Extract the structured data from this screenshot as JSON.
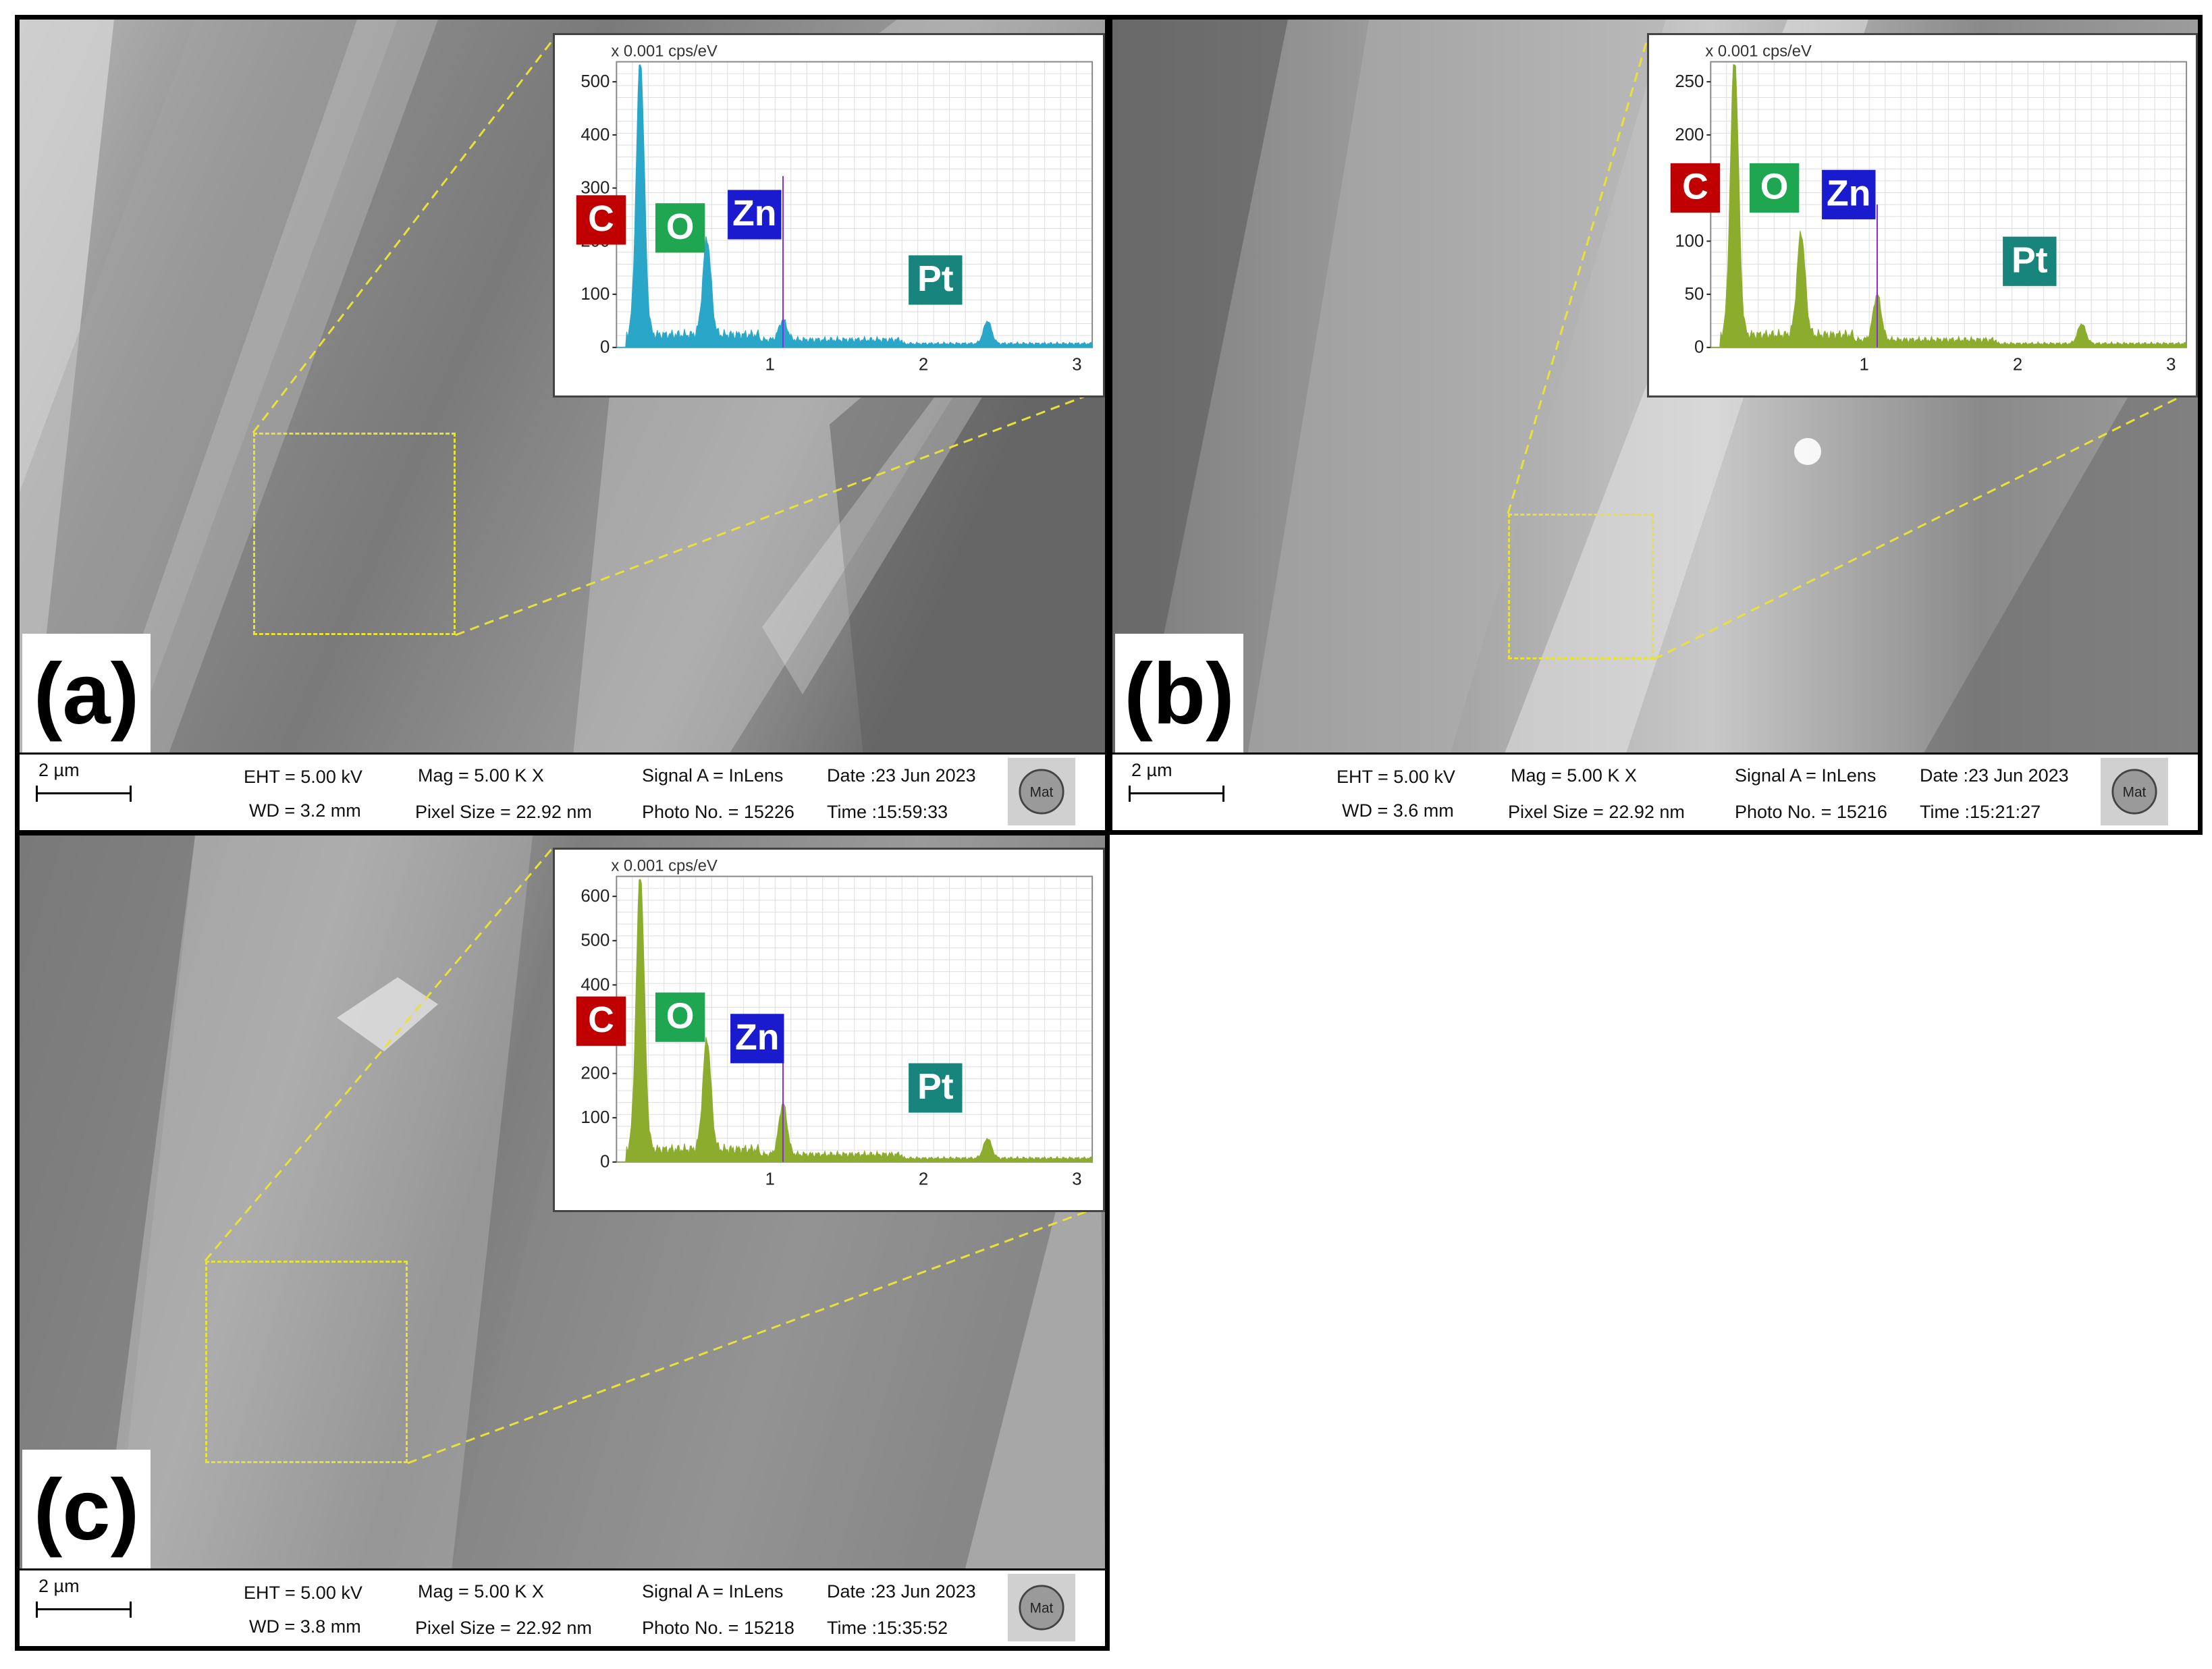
{
  "panels": [
    {
      "label": "(a)",
      "eds": {
        "unit": "x 0.001 cps/eV",
        "y_ticks": [
          "0",
          "100",
          "200",
          "300",
          "400",
          "500"
        ],
        "x_ticks": [
          "1",
          "2",
          "3"
        ],
        "spectrum_color": "#2aa6c9",
        "elements": [
          {
            "symbol": "C",
            "color": "#c00000"
          },
          {
            "symbol": "O",
            "color": "#1fa650"
          },
          {
            "symbol": "Zn",
            "color": "#1a1acf"
          },
          {
            "symbol": "Pt",
            "color": "#17857c"
          }
        ]
      },
      "info": {
        "scale": "2 µm",
        "eht": "EHT =  5.00 kV",
        "wd": "WD =  3.2 mm",
        "mag": "Mag =     5.00 K X",
        "pixel": "Pixel Size = 22.92 nm",
        "signal": "Signal A = InLens",
        "photo": "Photo No. = 15226",
        "date": "Date :23 Jun 2023",
        "time": "Time :15:59:33",
        "logo_text": "Mat"
      }
    },
    {
      "label": "(b)",
      "eds": {
        "unit": "x 0.001 cps/eV",
        "y_ticks": [
          "0",
          "50",
          "100",
          "150",
          "200",
          "250"
        ],
        "x_ticks": [
          "1",
          "2",
          "3"
        ],
        "spectrum_color": "#8cac2e",
        "elements": [
          {
            "symbol": "C",
            "color": "#c00000"
          },
          {
            "symbol": "O",
            "color": "#1fa650"
          },
          {
            "symbol": "Zn",
            "color": "#1a1acf"
          },
          {
            "symbol": "Pt",
            "color": "#17857c"
          }
        ]
      },
      "info": {
        "scale": "2 µm",
        "eht": "EHT =  5.00 kV",
        "wd": "WD =  3.6 mm",
        "mag": "Mag =     5.00 K X",
        "pixel": "Pixel Size = 22.92 nm",
        "signal": "Signal A = InLens",
        "photo": "Photo No. = 15216",
        "date": "Date :23 Jun 2023",
        "time": "Time :15:21:27",
        "logo_text": "Mat"
      }
    },
    {
      "label": "(c)",
      "eds": {
        "unit": "x 0.001 cps/eV",
        "y_ticks": [
          "0",
          "100",
          "200",
          "300",
          "400",
          "500",
          "600"
        ],
        "x_ticks": [
          "1",
          "2",
          "3"
        ],
        "spectrum_color": "#8cac2e",
        "elements": [
          {
            "symbol": "C",
            "color": "#c00000"
          },
          {
            "symbol": "O",
            "color": "#1fa650"
          },
          {
            "symbol": "Zn",
            "color": "#1a1acf"
          },
          {
            "symbol": "Pt",
            "color": "#17857c"
          }
        ]
      },
      "info": {
        "scale": "2 µm",
        "eht": "EHT =  5.00 kV",
        "wd": "WD =  3.8 mm",
        "mag": "Mag =     5.00 K X",
        "pixel": "Pixel Size = 22.92 nm",
        "signal": "Signal A = InLens",
        "photo": "Photo No. = 15218",
        "date": "Date :23 Jun 2023",
        "time": "Time :15:35:52",
        "logo_text": "Mat"
      }
    }
  ],
  "colors": {
    "roi_box": "#e6e23a",
    "sem_gray": "#8a8a8a"
  }
}
